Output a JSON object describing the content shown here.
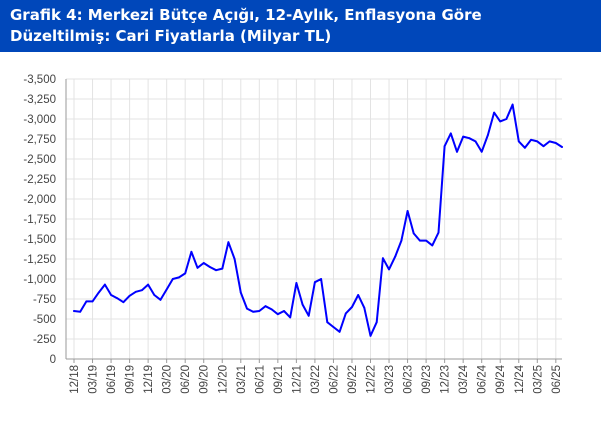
{
  "title": {
    "line1": "Grafik 4: Merkezi Bütçe Açığı, 12-Aylık, Enflasyona Göre",
    "line2": "Düzeltilmiş: Cari Fiyatlarla (Milyar TL)"
  },
  "colors": {
    "title_background": "#0047ba",
    "title_text": "#ffffff",
    "series_line": "#0000ff",
    "grid": "#e3e3e3",
    "axis": "#9a9a9a"
  },
  "chart_data": {
    "type": "line",
    "title": "Grafik 4: Merkezi Bütçe Açığı, 12-Aylık, Enflasyona Göre Düzeltilmiş: Cari Fiyatlarla (Milyar TL)",
    "xlabel": "",
    "ylabel": "",
    "ylim": [
      0,
      -3500
    ],
    "y_axis_inverted": true,
    "y_ticks": [
      0,
      -250,
      -500,
      -750,
      -1000,
      -1250,
      -1500,
      -1750,
      -2000,
      -2250,
      -2500,
      -2750,
      -3000,
      -3250,
      -3500
    ],
    "y_tick_labels": [
      "0",
      "-250",
      "-500",
      "-750",
      "-1,000",
      "-1,250",
      "-1,500",
      "-1,750",
      "-2,000",
      "-2,250",
      "-2,500",
      "-2,750",
      "-3,000",
      "-3,250",
      "-3,500"
    ],
    "x_tick_labels": [
      "12/18",
      "03/19",
      "06/19",
      "09/19",
      "12/19",
      "03/20",
      "06/20",
      "09/20",
      "12/20",
      "03/21",
      "06/21",
      "09/21",
      "12/21",
      "03/22",
      "06/22",
      "09/22",
      "12/22",
      "03/23",
      "06/23",
      "09/23",
      "12/23",
      "03/24",
      "06/24",
      "09/24",
      "12/24",
      "03/25",
      "06/25"
    ],
    "grid": true,
    "legend": "none",
    "series": [
      {
        "x": [
          "12/18",
          "01/19",
          "02/19",
          "03/19",
          "04/19",
          "05/19",
          "06/19",
          "07/19",
          "08/19",
          "09/19",
          "10/19",
          "11/19",
          "12/19",
          "01/20",
          "02/20",
          "03/20",
          "04/20",
          "05/20",
          "06/20",
          "07/20",
          "08/20",
          "09/20",
          "10/20",
          "11/20",
          "12/20",
          "01/21",
          "02/21",
          "03/21",
          "04/21",
          "05/21",
          "06/21",
          "07/21",
          "08/21",
          "09/21",
          "10/21",
          "11/21",
          "12/21",
          "01/22",
          "02/22",
          "03/22",
          "04/22",
          "05/22",
          "06/22",
          "07/22",
          "08/22",
          "09/22",
          "10/22",
          "11/22",
          "12/22",
          "01/23",
          "02/23",
          "03/23",
          "04/23",
          "05/23",
          "06/23",
          "07/23",
          "08/23",
          "09/23",
          "10/23",
          "11/23",
          "12/23",
          "01/24",
          "02/24",
          "03/24",
          "04/24",
          "05/24",
          "06/24",
          "07/24",
          "08/24",
          "09/24",
          "10/24",
          "11/24",
          "12/24",
          "01/25",
          "02/25",
          "03/25",
          "04/25",
          "05/25",
          "06/25",
          "07/25"
        ],
        "values": [
          -600,
          -590,
          -720,
          -720,
          -830,
          -930,
          -800,
          -760,
          -710,
          -790,
          -840,
          -860,
          -930,
          -800,
          -740,
          -870,
          -1000,
          -1020,
          -1070,
          -1340,
          -1140,
          -1200,
          -1150,
          -1110,
          -1130,
          -1460,
          -1250,
          -830,
          -630,
          -590,
          -600,
          -660,
          -620,
          -560,
          -600,
          -520,
          -950,
          -680,
          -540,
          -960,
          -1000,
          -460,
          -400,
          -340,
          -570,
          -650,
          -800,
          -640,
          -290,
          -460,
          -1260,
          -1120,
          -1280,
          -1480,
          -1850,
          -1570,
          -1480,
          -1480,
          -1420,
          -1580,
          -2660,
          -2820,
          -2590,
          -2780,
          -2760,
          -2720,
          -2590,
          -2800,
          -3080,
          -2970,
          -3000,
          -3180,
          -2720,
          -2640,
          -2740,
          -2720,
          -2660,
          -2720,
          -2700,
          -2650
        ]
      }
    ]
  }
}
